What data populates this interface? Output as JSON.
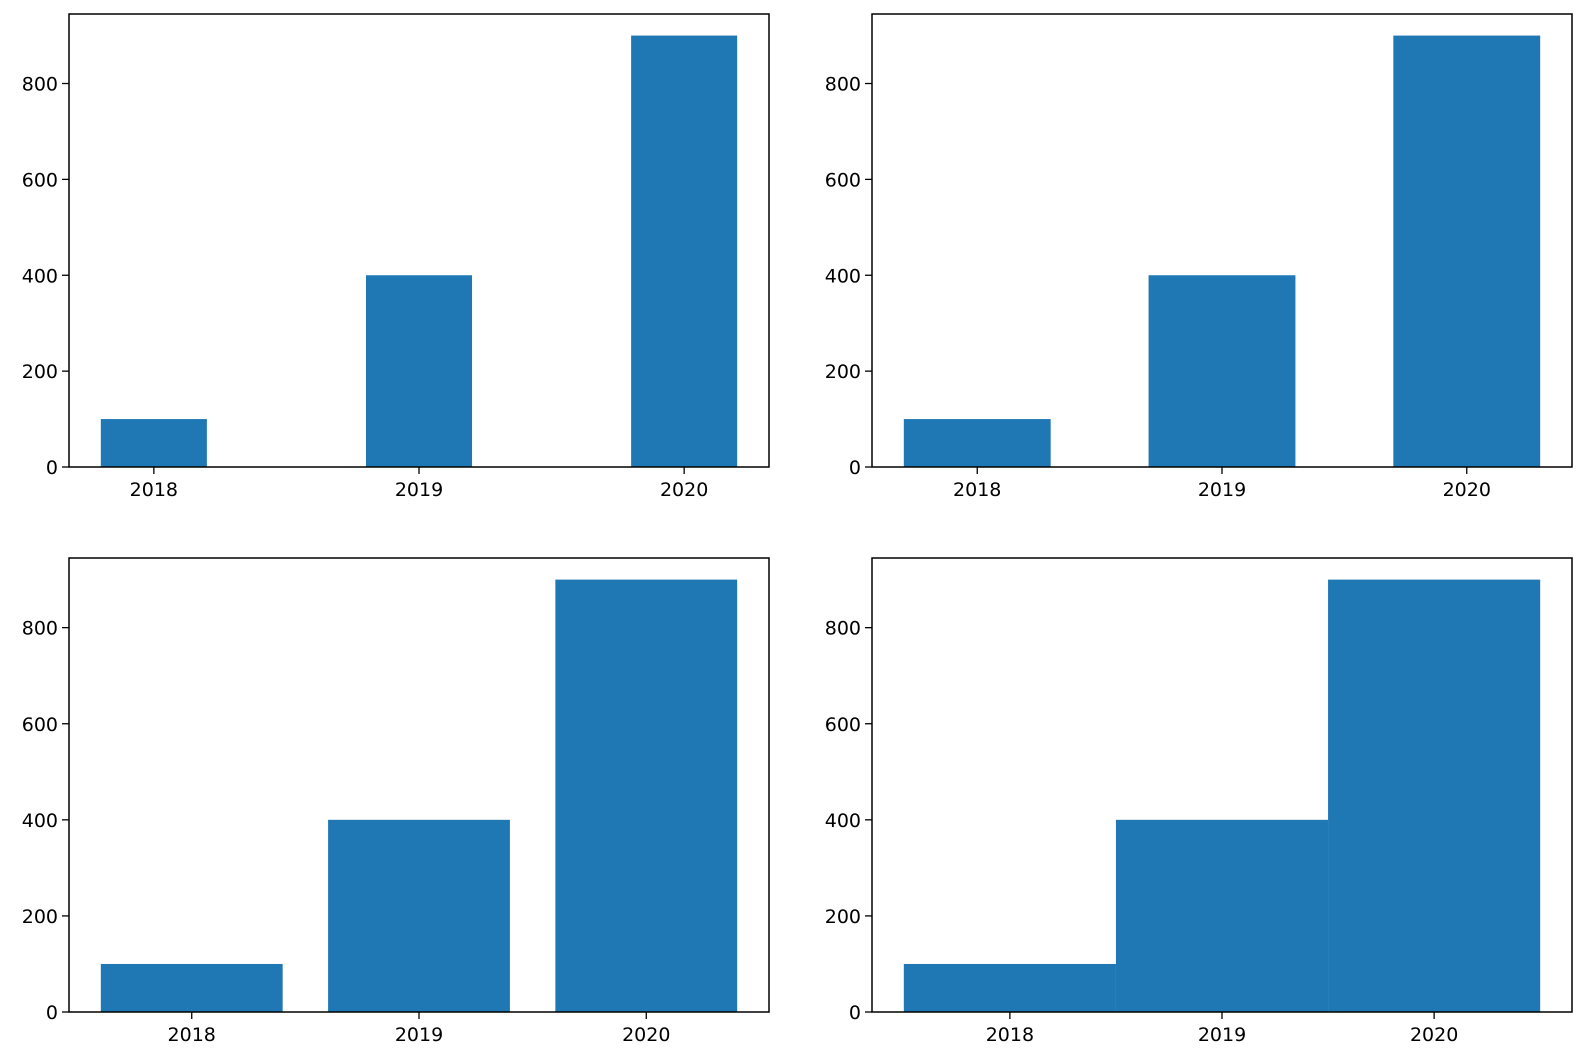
{
  "colors": {
    "bar": "#1f77b4",
    "axis": "#000000",
    "background": "#ffffff"
  },
  "chart_data": [
    {
      "type": "bar",
      "position": "top-left",
      "bar_width": 0.4,
      "categories": [
        "2018",
        "2019",
        "2020"
      ],
      "values": [
        100,
        400,
        900
      ],
      "title": "",
      "xlabel": "",
      "ylabel": "",
      "ylim": [
        0,
        945
      ],
      "yticks": [
        0,
        200,
        400,
        600,
        800
      ],
      "grid": false
    },
    {
      "type": "bar",
      "position": "top-right",
      "bar_width": 0.6,
      "categories": [
        "2018",
        "2019",
        "2020"
      ],
      "values": [
        100,
        400,
        900
      ],
      "title": "",
      "xlabel": "",
      "ylabel": "",
      "ylim": [
        0,
        945
      ],
      "yticks": [
        0,
        200,
        400,
        600,
        800
      ],
      "grid": false
    },
    {
      "type": "bar",
      "position": "bottom-left",
      "bar_width": 0.8,
      "categories": [
        "2018",
        "2019",
        "2020"
      ],
      "values": [
        100,
        400,
        900
      ],
      "title": "",
      "xlabel": "",
      "ylabel": "",
      "ylim": [
        0,
        945
      ],
      "yticks": [
        0,
        200,
        400,
        600,
        800
      ],
      "grid": false
    },
    {
      "type": "bar",
      "position": "bottom-right",
      "bar_width": 1.0,
      "categories": [
        "2018",
        "2019",
        "2020"
      ],
      "values": [
        100,
        400,
        900
      ],
      "title": "",
      "xlabel": "",
      "ylabel": "",
      "ylim": [
        0,
        945
      ],
      "yticks": [
        0,
        200,
        400,
        600,
        800
      ],
      "grid": false
    }
  ]
}
